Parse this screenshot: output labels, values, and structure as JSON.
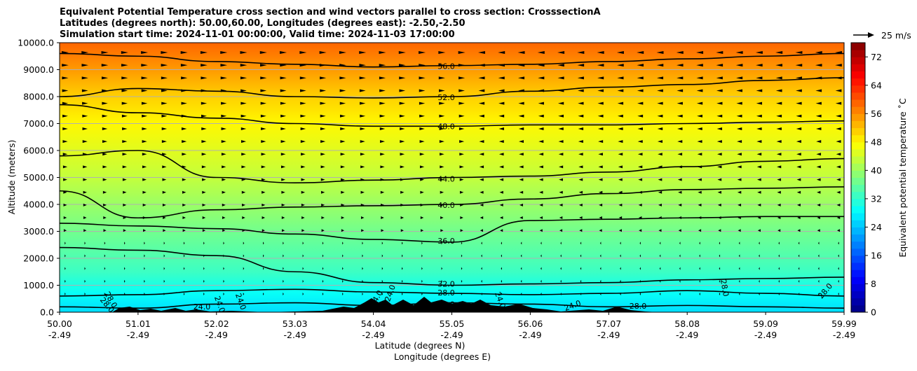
{
  "chart_data": {
    "type": "heatmap",
    "title_lines": [
      "Equivalent Potential Temperature cross section and wind vectors parallel to cross section: CrosssectionA",
      "Latitudes (degrees north): 50.00,60.00, Longitudes (degrees east): -2.50,-2.50",
      "Simulation start time: 2024-11-01 00:00:00, Valid time: 2024-11-03 17:00:00"
    ],
    "ylabel": "Altitude (meters)",
    "xlabel_lines": [
      "Latitude (degrees N)",
      "Longitude (degrees E)"
    ],
    "ylim": [
      0,
      10000
    ],
    "xlim": [
      50.0,
      59.99
    ],
    "yticks": [
      "0.0",
      "1000.0",
      "2000.0",
      "3000.0",
      "4000.0",
      "5000.0",
      "6000.0",
      "7000.0",
      "8000.0",
      "9000.0",
      "10000.0"
    ],
    "xticks": [
      {
        "lat": "50.00",
        "lon": "-2.49"
      },
      {
        "lat": "51.01",
        "lon": "-2.49"
      },
      {
        "lat": "52.02",
        "lon": "-2.49"
      },
      {
        "lat": "53.03",
        "lon": "-2.49"
      },
      {
        "lat": "54.04",
        "lon": "-2.49"
      },
      {
        "lat": "55.05",
        "lon": "-2.49"
      },
      {
        "lat": "56.06",
        "lon": "-2.49"
      },
      {
        "lat": "57.07",
        "lon": "-2.49"
      },
      {
        "lat": "58.08",
        "lon": "-2.49"
      },
      {
        "lat": "59.09",
        "lon": "-2.49"
      },
      {
        "lat": "59.99",
        "lon": "-2.49"
      }
    ],
    "colorbar": {
      "label": "Equivalent potential temperature ˚C",
      "range": [
        0,
        76
      ],
      "ticks": [
        "0",
        "8",
        "16",
        "24",
        "32",
        "40",
        "48",
        "56",
        "64",
        "72"
      ]
    },
    "wind_key": "25 m/s",
    "contour_levels": [
      {
        "value": "56.0",
        "alt": [
          9600,
          9500,
          9300,
          9200,
          9100,
          9150,
          9200,
          9300,
          9400,
          9500,
          9600
        ]
      },
      {
        "value": "52.0",
        "alt": [
          8000,
          8300,
          8200,
          8000,
          7950,
          8000,
          8200,
          8350,
          8450,
          8600,
          8700
        ]
      },
      {
        "value": "48.0",
        "alt": [
          7700,
          7400,
          7200,
          7000,
          6900,
          6900,
          6950,
          6950,
          7000,
          7050,
          7100
        ]
      },
      {
        "value": "44.0",
        "alt": [
          5800,
          6000,
          5000,
          4800,
          4900,
          5000,
          5050,
          5200,
          5400,
          5600,
          5700
        ]
      },
      {
        "value": "40.0",
        "alt": [
          4500,
          3500,
          3800,
          3900,
          3950,
          4000,
          4200,
          4400,
          4550,
          4600,
          4650
        ]
      },
      {
        "value": "36.0",
        "alt": [
          3300,
          3200,
          3100,
          2900,
          2700,
          2600,
          3400,
          3450,
          3500,
          3550,
          3550
        ]
      },
      {
        "value": "32.0",
        "alt": [
          2400,
          2300,
          2100,
          1500,
          1100,
          1000,
          1050,
          1100,
          1200,
          1250,
          1300
        ]
      },
      {
        "value": "28.0",
        "alt": [
          600,
          650,
          800,
          850,
          750,
          700,
          650,
          700,
          800,
          700,
          600
        ]
      },
      {
        "value": "24.0",
        "alt": [
          200,
          150,
          300,
          350,
          250,
          350,
          300,
          200,
          250,
          200,
          150
        ]
      }
    ],
    "extra_contour_labels": [
      "28.0",
      "28.0",
      "24.0",
      "24.0",
      "24.0",
      "24.0",
      "24.0",
      "24.0",
      "24.0",
      "28.0",
      "28.0",
      "28.0"
    ],
    "field_profile": [
      {
        "alt": 0,
        "value": 26
      },
      {
        "alt": 700,
        "value": 29
      },
      {
        "alt": 1500,
        "value": 33
      },
      {
        "alt": 3000,
        "value": 37
      },
      {
        "alt": 5000,
        "value": 43
      },
      {
        "alt": 7000,
        "value": 48
      },
      {
        "alt": 8000,
        "value": 51
      },
      {
        "alt": 9000,
        "value": 55
      },
      {
        "alt": 10000,
        "value": 59
      }
    ]
  }
}
